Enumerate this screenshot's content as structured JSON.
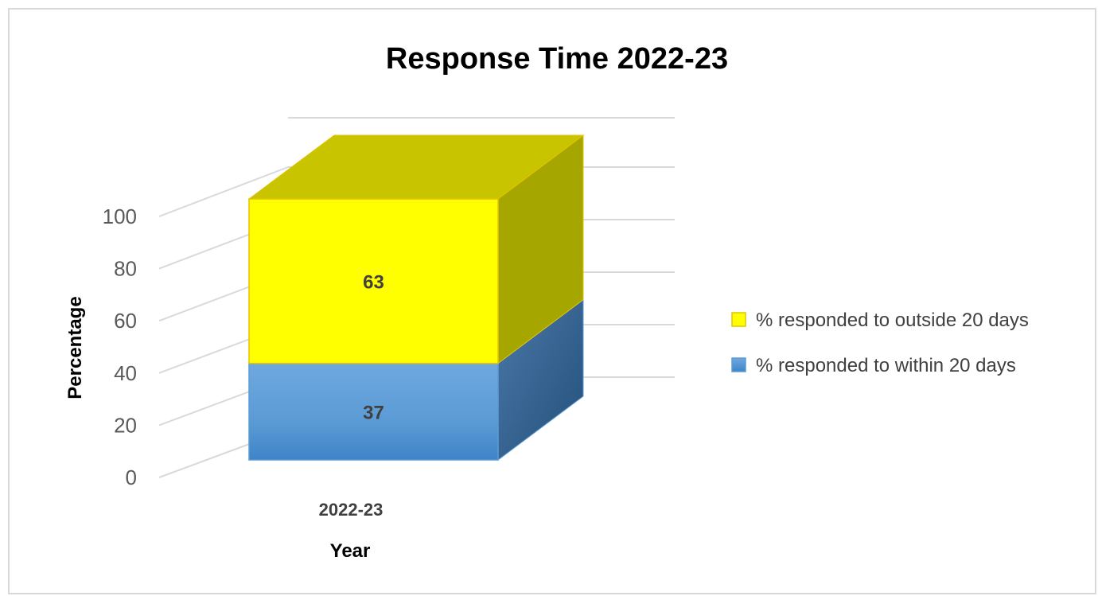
{
  "chart_data": {
    "type": "bar",
    "stacked": true,
    "three_d": true,
    "title": "Response Time 2022-23",
    "xlabel": "Year",
    "ylabel": "Percentage",
    "categories": [
      "2022-23"
    ],
    "series": [
      {
        "name": "% responded to within 20 days",
        "values": [
          37
        ],
        "color": "#5b9bd5"
      },
      {
        "name": "% responded to outside 20 days",
        "values": [
          63
        ],
        "color": "#ffff00"
      }
    ],
    "ylim": [
      0,
      100
    ],
    "yticks": [
      0,
      20,
      40,
      60,
      80,
      100
    ],
    "grid": true,
    "legend": "right",
    "legend_order": [
      1,
      0
    ]
  }
}
